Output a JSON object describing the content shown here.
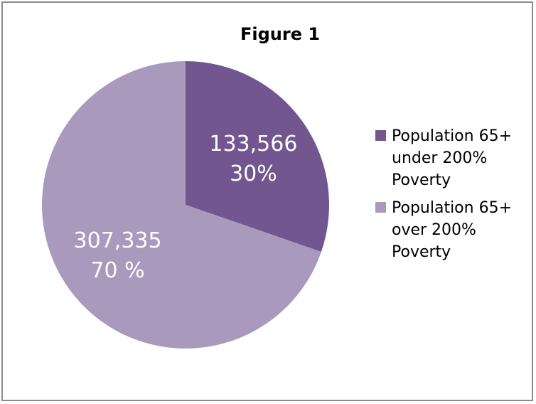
{
  "chart_data": {
    "type": "pie",
    "title": "Figure 1",
    "slices": [
      {
        "name": "Population 65+ under 200% Poverty",
        "value": 133566,
        "value_label": "133,566",
        "percent_label": "30%",
        "color": "#715690"
      },
      {
        "name": "Population 65+ over 200% Poverty",
        "value": 307335,
        "value_label": "307,335",
        "percent_label": "70 %",
        "color": "#a899bd"
      }
    ],
    "legend_position": "right"
  }
}
